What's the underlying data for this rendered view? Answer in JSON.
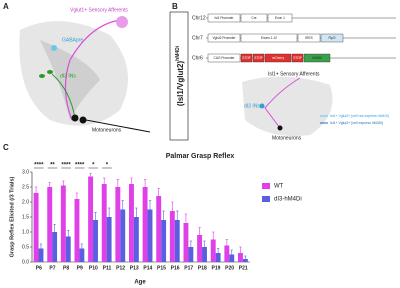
{
  "panel_a": {
    "letter": "A",
    "afferents": "Vglut1+ Sensory Afferents",
    "gabapre": "GABApre",
    "di3": "dI3 INs",
    "motoneurons": "Motoneurons"
  },
  "panel_b": {
    "letter": "B",
    "genotype": "(Isl1/Vglut2)",
    "genotype_sup": "hM4Di",
    "constructs": [
      {
        "chr": "Chr12",
        "parts": [
          "Isl1 Promoter",
          "Cre",
          "Exon 1"
        ]
      },
      {
        "chr": "Chr7",
        "parts": [
          "Vglut2 Promoter",
          "Exons 1-12",
          "IRES",
          "FlpO"
        ]
      },
      {
        "chr": "Chr6",
        "parts": [
          "CAG Promoter",
          "STOP",
          "STOP",
          "mCherry",
          "STOP",
          "hM4Di"
        ]
      }
    ],
    "afferents": "Isl1+ Sensory Afferents",
    "di3": "dI3 INs",
    "motoneurons": "Motoneurons",
    "legend": [
      "Isl1+ Vglut2+ [cell not express hM4Di]",
      "Isl1+ Vglut2+ [cell express hM4Di]"
    ]
  },
  "chart_data": {
    "type": "bar",
    "panel": "C",
    "title": "Palmar Grasp Reflex",
    "x_label": "Age",
    "y_label": "Grasp Reflex Elicited (/3 Trials)",
    "categories": [
      "P6",
      "P7",
      "P8",
      "P9",
      "P10",
      "P11",
      "P12",
      "P13",
      "P14",
      "P15",
      "P16",
      "P17",
      "P18",
      "P19",
      "P20",
      "P21"
    ],
    "series": [
      {
        "name": "WT",
        "color": "#e040e8",
        "values": [
          2.3,
          2.5,
          2.55,
          2.1,
          2.85,
          2.6,
          2.5,
          2.6,
          2.5,
          2.2,
          1.7,
          1.3,
          0.9,
          0.75,
          0.55,
          0.3
        ],
        "errors": [
          0.2,
          0.15,
          0.15,
          0.2,
          0.1,
          0.2,
          0.25,
          0.2,
          0.25,
          0.25,
          0.3,
          0.3,
          0.25,
          0.25,
          0.2,
          0.2
        ]
      },
      {
        "name": "dI3-hM4Di",
        "color": "#5a5ee0",
        "values": [
          0.45,
          1.0,
          0.85,
          0.45,
          1.4,
          1.5,
          1.75,
          1.5,
          1.75,
          1.4,
          1.4,
          0.5,
          0.5,
          0.3,
          0.25,
          0.1
        ],
        "errors": [
          0.15,
          0.25,
          0.2,
          0.15,
          0.25,
          0.3,
          0.3,
          0.3,
          0.3,
          0.3,
          0.3,
          0.2,
          0.2,
          0.15,
          0.15,
          0.1
        ]
      }
    ],
    "significance": [
      "****",
      "**",
      "****",
      "****",
      "*",
      "*",
      null,
      null,
      null,
      null,
      null,
      null,
      null,
      null,
      null,
      null
    ],
    "ylim": [
      0,
      3
    ],
    "yticks": [
      {
        "value": 0,
        "label": "0.0"
      },
      {
        "value": 0.5,
        "label": "0.5"
      },
      {
        "value": 1,
        "label": "1.0"
      },
      {
        "value": 1.5,
        "label": "1.5"
      },
      {
        "value": 2,
        "label": "2.0"
      },
      {
        "value": 2.5,
        "label": "2.5"
      },
      {
        "value": 3,
        "label": "3.0"
      }
    ],
    "legend_position": "right"
  }
}
